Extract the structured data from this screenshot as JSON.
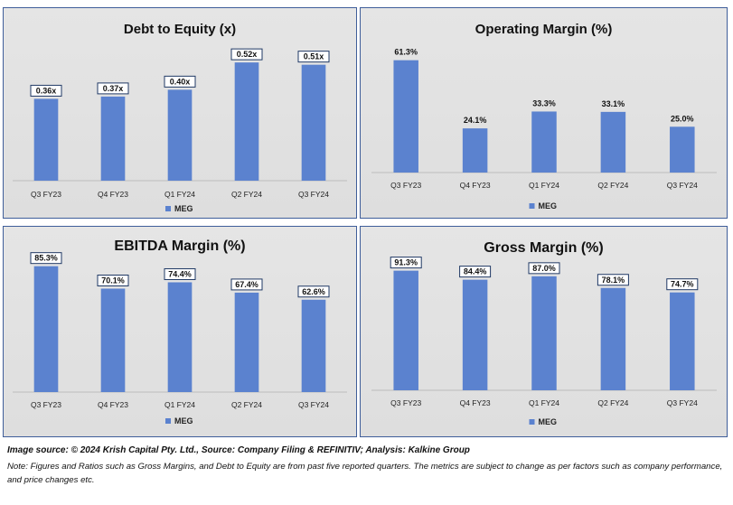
{
  "chart_data": [
    {
      "type": "bar",
      "title": "Debt to Equity (x)",
      "categories": [
        "Q3 FY23",
        "Q4 FY23",
        "Q1 FY24",
        "Q2 FY24",
        "Q3 FY24"
      ],
      "series": [
        {
          "name": "MEG",
          "values": [
            0.36,
            0.37,
            0.4,
            0.52,
            0.51
          ]
        }
      ],
      "data_labels": [
        "0.36x",
        "0.37x",
        "0.40x",
        "0.52x",
        "0.51x"
      ],
      "label_boxed": true,
      "ylim": [
        0,
        0.6
      ],
      "legend": "bottom",
      "color": "#5b82cf"
    },
    {
      "type": "bar",
      "title": "Operating Margin (%)",
      "categories": [
        "Q3 FY23",
        "Q4 FY23",
        "Q1 FY24",
        "Q2 FY24",
        "Q3 FY24"
      ],
      "series": [
        {
          "name": "MEG",
          "values": [
            61.3,
            24.1,
            33.3,
            33.1,
            25.0
          ]
        }
      ],
      "data_labels": [
        "61.3%",
        "24.1%",
        "33.3%",
        "33.1%",
        "25.0%"
      ],
      "label_boxed": false,
      "ylim": [
        0,
        70
      ],
      "legend": "bottom",
      "color": "#5b82cf"
    },
    {
      "type": "bar",
      "title": "EBITDA Margin (%)",
      "categories": [
        "Q3 FY23",
        "Q4 FY23",
        "Q1 FY24",
        "Q2 FY24",
        "Q3 FY24"
      ],
      "series": [
        {
          "name": "MEG",
          "values": [
            85.3,
            70.1,
            74.4,
            67.4,
            62.6
          ]
        }
      ],
      "data_labels": [
        "85.3%",
        "70.1%",
        "74.4%",
        "67.4%",
        "62.6%"
      ],
      "label_boxed": true,
      "ylim": [
        0,
        90
      ],
      "legend": "bottom",
      "color": "#5b82cf"
    },
    {
      "type": "bar",
      "title": "Gross Margin (%)",
      "categories": [
        "Q3 FY23",
        "Q4 FY23",
        "Q1 FY24",
        "Q2 FY24",
        "Q3 FY24"
      ],
      "series": [
        {
          "name": "MEG",
          "values": [
            91.3,
            84.4,
            87.0,
            78.1,
            74.7
          ]
        }
      ],
      "data_labels": [
        "91.3%",
        "84.4%",
        "87.0%",
        "78.1%",
        "74.7%"
      ],
      "label_boxed": true,
      "ylim": [
        0,
        100
      ],
      "legend": "bottom",
      "color": "#5b82cf"
    }
  ],
  "footer": {
    "source": "Image source: © 2024 Krish Capital Pty. Ltd., Source: Company Filing & REFINITIV; Analysis: Kalkine Group",
    "note": "Note: Figures and Ratios such as  Gross Margins, and Debt to Equity are from past  five reported  quarters. The metrics are subject to change as per factors such as company performance, and price changes etc."
  }
}
